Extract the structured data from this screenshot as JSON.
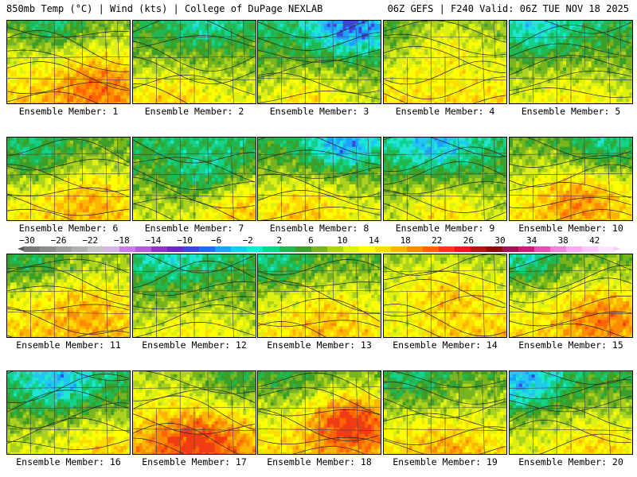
{
  "header": {
    "left": "850mb Temp (°C) | Wind (kts) | College of DuPage NEXLAB",
    "right": "06Z GEFS | F240 Valid: 06Z TUE NOV 18 2025"
  },
  "colorbar": {
    "ticks": [
      "-30",
      "-26",
      "-22",
      "-18",
      "-14",
      "-10",
      "-6",
      "-2",
      "2",
      "6",
      "10",
      "14",
      "18",
      "22",
      "26",
      "30",
      "34",
      "38",
      "42"
    ],
    "colors": [
      "#7a7a7a",
      "#8c8c8c",
      "#9e9e9e",
      "#b0b0b0",
      "#c4c4c4",
      "#d6b4e6",
      "#c87ee6",
      "#b45adc",
      "#9632c8",
      "#6e28c8",
      "#3c46dc",
      "#1e6ef0",
      "#1ea0ff",
      "#20c8f0",
      "#1ee6d2",
      "#14d28c",
      "#20b850",
      "#3ca028",
      "#78b41e",
      "#aad21e",
      "#dcf014",
      "#ffff00",
      "#ffdc00",
      "#ffb400",
      "#ff8c00",
      "#ff6400",
      "#f03c14",
      "#dc1e1e",
      "#b41414",
      "#8c0a0a",
      "#a01450",
      "#c81e78",
      "#e650b4",
      "#f082dc",
      "#ffaaf0",
      "#ffc8ff",
      "#ffe6ff"
    ]
  },
  "members": [
    {
      "label": "Ensemble Member: 1",
      "base": 12,
      "warm": [
        0.72,
        0.72,
        6
      ],
      "cold": [
        0.35,
        0.05,
        -6
      ],
      "dir": 0.3
    },
    {
      "label": "Ensemble Member: 2",
      "base": 8,
      "warm": [
        0.3,
        0.9,
        4
      ],
      "cold": [
        0.6,
        0.05,
        -4
      ],
      "dir": 0.1
    },
    {
      "label": "Ensemble Member: 3",
      "base": 6,
      "warm": [
        0.4,
        0.9,
        5
      ],
      "cold": [
        0.75,
        0.08,
        -9
      ],
      "dir": 0.0
    },
    {
      "label": "Ensemble Member: 4",
      "base": 11,
      "warm": [
        0.45,
        0.25,
        4
      ],
      "cold": [
        0.05,
        0.2,
        -3
      ],
      "dir": 0.2
    },
    {
      "label": "Ensemble Member: 5",
      "base": 7,
      "warm": [
        0.5,
        0.9,
        3
      ],
      "cold": [
        0.2,
        0.1,
        -5
      ],
      "dir": -0.2
    },
    {
      "label": "Ensemble Member: 6",
      "base": 10,
      "warm": [
        0.65,
        0.7,
        5
      ],
      "cold": [
        0.2,
        0.2,
        -5
      ],
      "dir": 0.4
    },
    {
      "label": "Ensemble Member: 7",
      "base": 7,
      "warm": [
        0.9,
        0.75,
        7
      ],
      "cold": [
        0.6,
        0.45,
        -6
      ],
      "dir": 0.5
    },
    {
      "label": "Ensemble Member: 8",
      "base": 8,
      "warm": [
        0.35,
        0.8,
        5
      ],
      "cold": [
        0.7,
        0.08,
        -9
      ],
      "dir": 0.0
    },
    {
      "label": "Ensemble Member: 9",
      "base": 6,
      "warm": [
        0.5,
        0.85,
        5
      ],
      "cold": [
        0.4,
        0.1,
        -6
      ],
      "dir": 0.1
    },
    {
      "label": "Ensemble Member: 10",
      "base": 10,
      "warm": [
        0.55,
        0.7,
        7
      ],
      "cold": [
        0.8,
        0.1,
        -5
      ],
      "dir": 0.2
    },
    {
      "label": "Ensemble Member: 11",
      "base": 12,
      "warm": [
        0.6,
        0.6,
        4
      ],
      "cold": [
        0.15,
        0.1,
        -5
      ],
      "dir": 0.3
    },
    {
      "label": "Ensemble Member: 12",
      "base": 7,
      "warm": [
        0.5,
        0.9,
        3
      ],
      "cold": [
        0.3,
        0.05,
        -4
      ],
      "dir": 0.0
    },
    {
      "label": "Ensemble Member: 13",
      "base": 10,
      "warm": [
        0.55,
        0.7,
        4
      ],
      "cold": [
        0.1,
        0.1,
        -5
      ],
      "dir": 0.4
    },
    {
      "label": "Ensemble Member: 14",
      "base": 12,
      "warm": [
        0.5,
        0.4,
        4
      ],
      "cold": [
        0.1,
        0.9,
        -3
      ],
      "dir": 0.2
    },
    {
      "label": "Ensemble Member: 15",
      "base": 11,
      "warm": [
        0.75,
        0.7,
        7
      ],
      "cold": [
        0.1,
        0.05,
        -7
      ],
      "dir": 0.1
    },
    {
      "label": "Ensemble Member: 16",
      "base": 7,
      "warm": [
        0.8,
        0.9,
        5
      ],
      "cold": [
        0.4,
        0.15,
        -7
      ],
      "dir": -0.2
    },
    {
      "label": "Ensemble Member: 17",
      "base": 13,
      "warm": [
        0.5,
        0.8,
        8
      ],
      "cold": [
        0.85,
        0.1,
        -5
      ],
      "dir": 0.3
    },
    {
      "label": "Ensemble Member: 18",
      "base": 11,
      "warm": [
        0.75,
        0.6,
        12
      ],
      "cold": [
        0.2,
        0.1,
        -3
      ],
      "dir": 0.4
    },
    {
      "label": "Ensemble Member: 19",
      "base": 10,
      "warm": [
        0.5,
        0.85,
        4
      ],
      "cold": [
        0.2,
        0.1,
        -4
      ],
      "dir": 0.1
    },
    {
      "label": "Ensemble Member: 20",
      "base": 8,
      "warm": [
        0.7,
        0.8,
        4
      ],
      "cold": [
        0.1,
        0.15,
        -9
      ],
      "dir": -0.1
    }
  ]
}
